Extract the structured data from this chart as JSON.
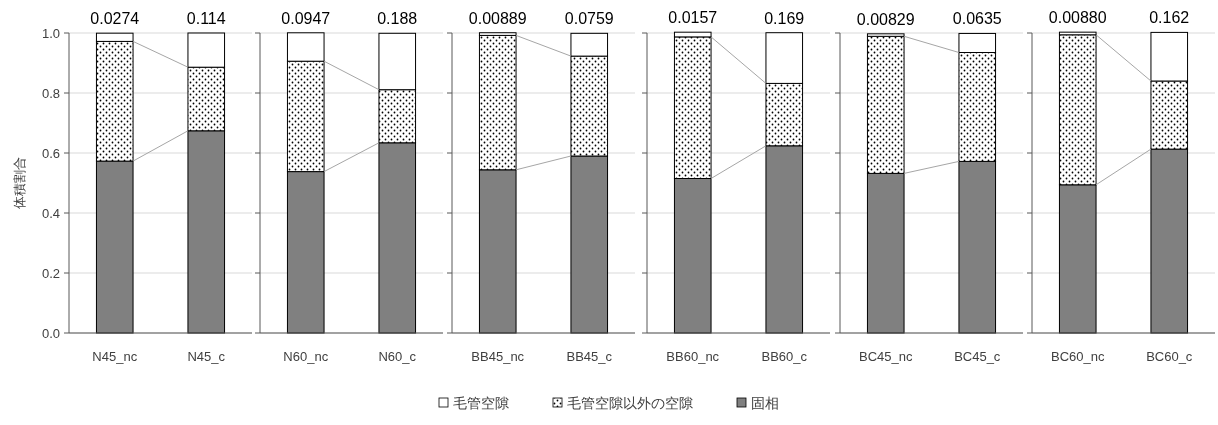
{
  "chart_data": [
    {
      "type": "bar",
      "stacked": true,
      "categories": [
        "N45_nc",
        "N45_c"
      ],
      "ylabel": "体積割合",
      "ylim": [
        0,
        1
      ],
      "yticks": [
        {
          "value": 0,
          "label": "0.0"
        },
        0.2,
        0.4,
        0.6,
        0.8,
        {
          "value": 1,
          "label": "1.0"
        }
      ],
      "grid": "y",
      "legend": "bottom",
      "series": [
        {
          "name": "固相",
          "color": "#808080",
          "values": [
            0.573,
            0.674
          ]
        },
        {
          "name": "毛管空隙以外の空隙",
          "color": "#000000",
          "values": [
            0.399,
            0.212
          ]
        },
        {
          "name": "毛管空隙",
          "color": "#ffffff",
          "values": [
            0.0274,
            0.114
          ],
          "value_labels": [
            "0.0274",
            "0.114"
          ]
        }
      ]
    },
    {
      "type": "bar",
      "stacked": true,
      "categories": [
        "N60_nc",
        "N60_c"
      ],
      "ylim": [
        0,
        1
      ],
      "yticks": [
        {
          "value": 0,
          "label": null
        },
        {
          "value": 0.2,
          "label": null
        },
        {
          "value": 0.4,
          "label": null
        },
        {
          "value": 0.6,
          "label": null
        },
        {
          "value": 0.8,
          "label": null
        },
        {
          "value": 1,
          "label": null
        }
      ],
      "grid": "y",
      "tick_labels": "x",
      "series": [
        {
          "color": "#808080",
          "values": [
            0.538,
            0.634
          ]
        },
        {
          "color": "#000000",
          "values": [
            0.368,
            0.177
          ]
        },
        {
          "color": "#ffffff",
          "values": [
            0.0947,
            0.188
          ],
          "value_labels": [
            "0.0947",
            "0.188"
          ]
        }
      ]
    },
    {
      "type": "bar",
      "stacked": true,
      "categories": [
        "BB45_nc",
        "BB45_c"
      ],
      "ylim": [
        0,
        1
      ],
      "yticks": [
        {
          "value": 0,
          "label": null
        },
        {
          "value": 0.2,
          "label": null
        },
        {
          "value": 0.4,
          "label": null
        },
        {
          "value": 0.6,
          "label": null
        },
        {
          "value": 0.8,
          "label": null
        },
        {
          "value": 1,
          "label": null
        }
      ],
      "grid": "y",
      "tick_labels": "x",
      "series": [
        {
          "color": "#808080",
          "values": [
            0.544,
            0.59
          ]
        },
        {
          "color": "#000000",
          "values": [
            0.448,
            0.333
          ]
        },
        {
          "color": "#ffffff",
          "values": [
            0.00889,
            0.0759
          ],
          "value_labels": [
            "0.00889",
            "0.0759"
          ]
        }
      ]
    },
    {
      "type": "bar",
      "stacked": true,
      "categories": [
        "BB60_nc",
        "BB60_c"
      ],
      "ylim": [
        0,
        1
      ],
      "yticks": [
        {
          "value": 0,
          "label": null
        },
        {
          "value": 0.2,
          "label": null
        },
        {
          "value": 0.4,
          "label": null
        },
        {
          "value": 0.6,
          "label": null
        },
        {
          "value": 0.8,
          "label": null
        },
        {
          "value": 1,
          "label": null
        }
      ],
      "grid": "y",
      "tick_labels": "x",
      "series": [
        {
          "color": "#808080",
          "values": [
            0.515,
            0.624
          ]
        },
        {
          "color": "#000000",
          "values": [
            0.472,
            0.208
          ]
        },
        {
          "color": "#ffffff",
          "values": [
            0.0157,
            0.169
          ],
          "value_labels": [
            "0.0157",
            "0.169"
          ]
        }
      ]
    },
    {
      "type": "bar",
      "stacked": true,
      "categories": [
        "BC45_nc",
        "BC45_c"
      ],
      "ylim": [
        0,
        1
      ],
      "yticks": [
        {
          "value": 0,
          "label": null
        },
        {
          "value": 0.2,
          "label": null
        },
        {
          "value": 0.4,
          "label": null
        },
        {
          "value": 0.6,
          "label": null
        },
        {
          "value": 0.8,
          "label": null
        },
        {
          "value": 1,
          "label": null
        }
      ],
      "grid": "y",
      "tick_labels": "x",
      "series": [
        {
          "color": "#808080",
          "values": [
            0.532,
            0.572
          ]
        },
        {
          "color": "#000000",
          "values": [
            0.457,
            0.363
          ]
        },
        {
          "color": "#ffffff",
          "values": [
            0.00829,
            0.0635
          ],
          "value_labels": [
            "0.00829",
            "0.0635"
          ]
        }
      ]
    },
    {
      "type": "bar",
      "stacked": true,
      "categories": [
        "BC60_nc",
        "BC60_c"
      ],
      "ylim": [
        0,
        1
      ],
      "yticks": [
        {
          "value": 0,
          "label": null
        },
        {
          "value": 0.2,
          "label": null
        },
        {
          "value": 0.4,
          "label": null
        },
        {
          "value": 0.6,
          "label": null
        },
        {
          "value": 0.8,
          "label": null
        },
        {
          "value": 1,
          "label": null
        }
      ],
      "grid": "y",
      "tick_labels": "x",
      "series": [
        {
          "color": "#808080",
          "values": [
            0.494,
            0.613
          ]
        },
        {
          "color": "#000000",
          "values": [
            0.5,
            0.227
          ]
        },
        {
          "color": "#ffffff",
          "values": [
            0.0088,
            0.162
          ],
          "value_labels": [
            "0.00880",
            "0.162"
          ]
        }
      ]
    }
  ]
}
